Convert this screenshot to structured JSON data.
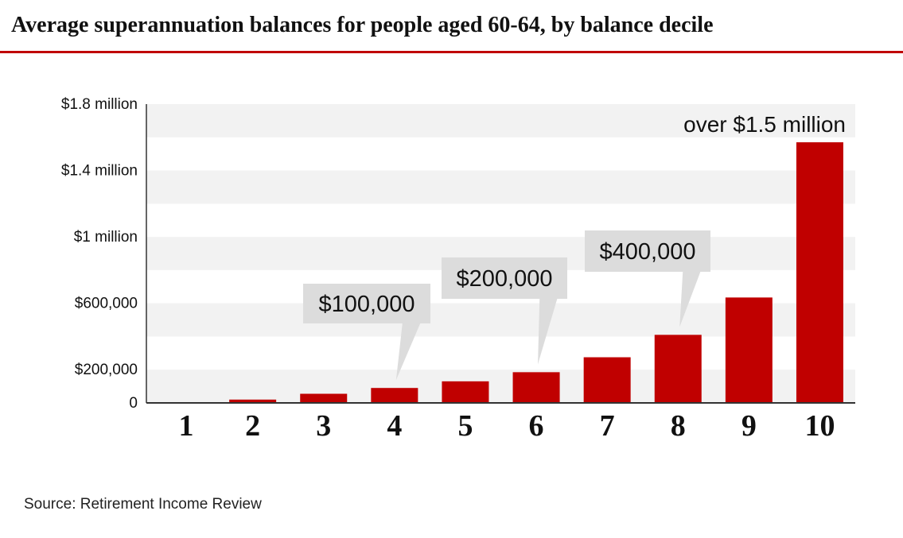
{
  "title": "Average superannuation balances for people aged 60-64, by balance decile",
  "source": "Source:  Retirement Income Review",
  "colors": {
    "bar": "#c00000",
    "title_rule": "#c00000",
    "band": "#f2f2f2",
    "callout": "#dcdcdc",
    "text": "#111111"
  },
  "chart_data": {
    "type": "bar",
    "title": "Average superannuation balances for people aged 60-64, by balance decile",
    "xlabel": "",
    "ylabel": "",
    "categories": [
      "1",
      "2",
      "3",
      "4",
      "5",
      "6",
      "7",
      "8",
      "9",
      "10"
    ],
    "values": [
      0,
      20000,
      55000,
      90000,
      130000,
      185000,
      275000,
      410000,
      635000,
      1570000
    ],
    "ylim": [
      0,
      1800000
    ],
    "y_ticks": [
      {
        "value": 0,
        "label": "0"
      },
      {
        "value": 200000,
        "label": "$200,000"
      },
      {
        "value": 600000,
        "label": "$600,000"
      },
      {
        "value": 1000000,
        "label": "$1 million"
      },
      {
        "value": 1400000,
        "label": "$1.4 million"
      },
      {
        "value": 1800000,
        "label": "$1.8 million"
      }
    ],
    "grid": "alternating horizontal bands",
    "annotations": [
      {
        "text": "$100,000",
        "category": "4",
        "style": "callout"
      },
      {
        "text": "$200,000",
        "category": "6",
        "style": "callout"
      },
      {
        "text": "$400,000",
        "category": "8",
        "style": "callout"
      },
      {
        "text": "over $1.5 million",
        "category": "10",
        "style": "label"
      }
    ]
  }
}
